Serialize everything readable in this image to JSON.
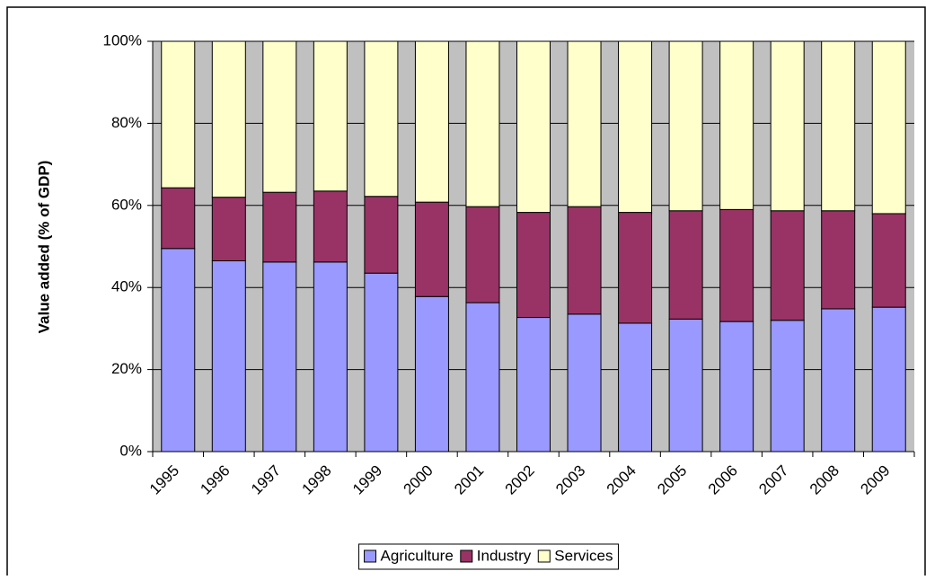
{
  "chart_data": {
    "type": "stacked_bar",
    "y_label": "Value added (% of GDP)",
    "categories": [
      "1995",
      "1996",
      "1997",
      "1998",
      "1999",
      "2000",
      "2001",
      "2002",
      "2003",
      "2004",
      "2005",
      "2006",
      "2007",
      "2008",
      "2009"
    ],
    "series": [
      {
        "name": "Agriculture",
        "color": "#9999ff",
        "values": [
          49.5,
          46.5,
          46.2,
          46.2,
          43.5,
          37.8,
          36.3,
          32.7,
          33.5,
          31.3,
          32.3,
          31.7,
          32.0,
          34.8,
          35.2
        ]
      },
      {
        "name": "Industry",
        "color": "#993366",
        "values": [
          14.8,
          15.5,
          17.0,
          17.3,
          18.7,
          23.0,
          23.4,
          25.6,
          26.2,
          27.0,
          26.4,
          27.3,
          26.7,
          23.9,
          22.8
        ]
      },
      {
        "name": "Services",
        "color": "#ffffcc",
        "values": [
          35.7,
          38.0,
          36.8,
          36.5,
          37.8,
          39.2,
          40.3,
          41.7,
          40.3,
          41.7,
          41.3,
          41.0,
          41.3,
          41.3,
          42.0
        ]
      }
    ],
    "ylim": [
      0,
      100
    ],
    "yticks": [
      {
        "value": 0,
        "label": "0%"
      },
      {
        "value": 20,
        "label": "20%"
      },
      {
        "value": 40,
        "label": "40%"
      },
      {
        "value": 60,
        "label": "60%"
      },
      {
        "value": 80,
        "label": "80%"
      },
      {
        "value": 100,
        "label": "100%"
      }
    ],
    "grid": true,
    "legend": "bottom",
    "plot_background": "#c0c0c0"
  }
}
